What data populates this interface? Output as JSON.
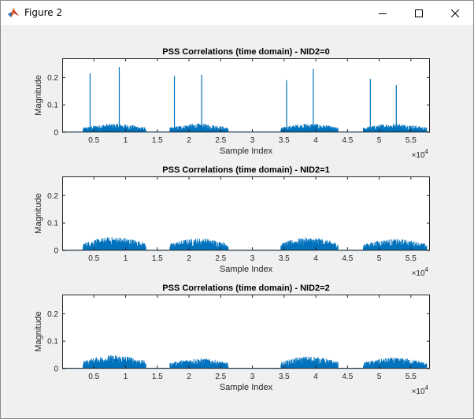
{
  "window": {
    "title": "Figure 2",
    "icon": "matlab-icon",
    "controls": [
      "minimize-icon",
      "maximize-icon",
      "close-icon"
    ]
  },
  "colors": {
    "series": "#0072bd",
    "axes_bg": "#ffffff",
    "figure_bg": "#f0f0f0"
  },
  "chart_data": [
    {
      "type": "line",
      "title": "PSS Correlations (time domain) - NID2=0",
      "xlabel": "Sample Index",
      "ylabel": "Magnitude",
      "xlim": [
        0,
        58000
      ],
      "ylim": [
        0,
        0.27
      ],
      "xticks": [
        5000,
        10000,
        15000,
        20000,
        25000,
        30000,
        35000,
        40000,
        45000,
        50000,
        55000
      ],
      "xtick_labels": [
        "0.5",
        "1",
        "1.5",
        "2",
        "2.5",
        "3",
        "3.5",
        "4",
        "4.5",
        "5",
        "5.5"
      ],
      "x_exponent_label": "×10",
      "x_exponent": "4",
      "yticks": [
        0,
        0.1,
        0.2
      ],
      "ytick_labels": [
        "0",
        "0.1",
        "0.2"
      ],
      "series": [
        {
          "segments": [
            [
              3300,
              13200
            ],
            [
              17000,
              26200
            ],
            [
              34500,
              43500
            ],
            [
              47500,
              57500
            ]
          ],
          "noise_max": [
            0.032,
            0.032,
            0.032,
            0.032
          ],
          "peaks": [
            [
              4400,
              0.215
            ],
            [
              9000,
              0.238
            ],
            [
              17700,
              0.205
            ],
            [
              22000,
              0.21
            ],
            [
              35400,
              0.19
            ],
            [
              39600,
              0.231
            ],
            [
              48600,
              0.195
            ],
            [
              52700,
              0.172
            ]
          ]
        }
      ]
    },
    {
      "type": "line",
      "title": "PSS Correlations (time domain) - NID2=1",
      "xlabel": "Sample Index",
      "ylabel": "Magnitude",
      "xlim": [
        0,
        58000
      ],
      "ylim": [
        0,
        0.27
      ],
      "xticks": [
        5000,
        10000,
        15000,
        20000,
        25000,
        30000,
        35000,
        40000,
        45000,
        50000,
        55000
      ],
      "xtick_labels": [
        "0.5",
        "1",
        "1.5",
        "2",
        "2.5",
        "3",
        "3.5",
        "4",
        "4.5",
        "5",
        "5.5"
      ],
      "x_exponent_label": "×10",
      "x_exponent": "4",
      "yticks": [
        0,
        0.1,
        0.2
      ],
      "ytick_labels": [
        "0",
        "0.1",
        "0.2"
      ],
      "series": [
        {
          "segments": [
            [
              3300,
              13200
            ],
            [
              17000,
              26200
            ],
            [
              34500,
              43500
            ],
            [
              47500,
              57500
            ]
          ],
          "noise_max": [
            0.05,
            0.045,
            0.048,
            0.042
          ],
          "peaks": []
        }
      ]
    },
    {
      "type": "line",
      "title": "PSS Correlations (time domain) - NID2=2",
      "xlabel": "Sample Index",
      "ylabel": "Magnitude",
      "xlim": [
        0,
        58000
      ],
      "ylim": [
        0,
        0.27
      ],
      "xticks": [
        5000,
        10000,
        15000,
        20000,
        25000,
        30000,
        35000,
        40000,
        45000,
        50000,
        55000
      ],
      "xtick_labels": [
        "0.5",
        "1",
        "1.5",
        "2",
        "2.5",
        "3",
        "3.5",
        "4",
        "4.5",
        "5",
        "5.5"
      ],
      "x_exponent_label": "×10",
      "x_exponent": "4",
      "yticks": [
        0,
        0.1,
        0.2
      ],
      "ytick_labels": [
        "0",
        "0.1",
        "0.2"
      ],
      "series": [
        {
          "segments": [
            [
              3300,
              13200
            ],
            [
              17000,
              26200
            ],
            [
              34500,
              43500
            ],
            [
              47500,
              57500
            ]
          ],
          "noise_max": [
            0.05,
            0.038,
            0.045,
            0.04
          ],
          "peaks": []
        }
      ]
    }
  ]
}
